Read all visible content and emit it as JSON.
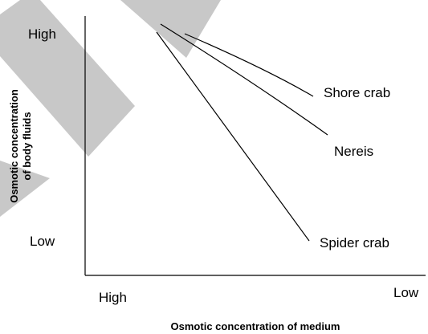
{
  "axes": {
    "y_title": [
      "Osmotic concentration",
      "of body fluids"
    ],
    "y_high": "High",
    "y_low": "Low",
    "x_high": "High",
    "x_low": "Low",
    "x_title": "Osmotic concentration of medium"
  },
  "lines": [
    {
      "label": "Shore crab"
    },
    {
      "label": "Nereis"
    },
    {
      "label": "Spider crab"
    }
  ]
}
